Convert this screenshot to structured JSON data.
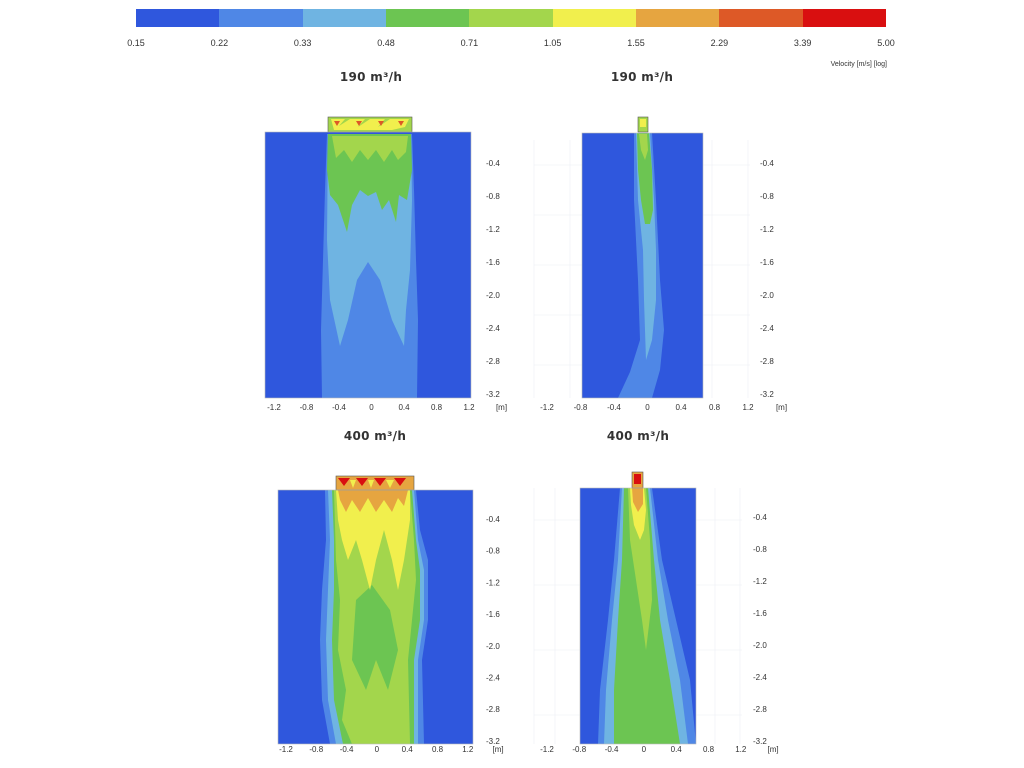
{
  "legend": {
    "ticks": [
      "0.15",
      "0.22",
      "0.33",
      "0.48",
      "0.71",
      "1.05",
      "1.55",
      "2.29",
      "3.39",
      "5.00"
    ],
    "unit_label": "Velocity [m/s] [log]",
    "colors": [
      "#2f57dd",
      "#4f87e6",
      "#6fb4e2",
      "#6cc552",
      "#a3d64c",
      "#f1ef4d",
      "#e6a540",
      "#dd5927",
      "#d90f10"
    ]
  },
  "panels": [
    {
      "title": "190 m³/h",
      "view": "front",
      "x_ticks": [
        "-1.2",
        "-0.8",
        "-0.4",
        "0",
        "0.4",
        "0.8",
        "1.2",
        "[m]"
      ],
      "y_ticks": [
        "-0.4",
        "-0.8",
        "-1.2",
        "-1.6",
        "-2.0",
        "-2.4",
        "-2.8",
        "-3.2"
      ]
    },
    {
      "title": "190 m³/h",
      "view": "side",
      "x_ticks": [
        "-1.2",
        "-0.8",
        "-0.4",
        "0",
        "0.4",
        "0.8",
        "1.2",
        "[m]"
      ],
      "y_ticks": [
        "-0.4",
        "-0.8",
        "-1.2",
        "-1.6",
        "-2.0",
        "-2.4",
        "-2.8",
        "-3.2"
      ]
    },
    {
      "title": "400 m³/h",
      "view": "front",
      "x_ticks": [
        "-1.2",
        "-0.8",
        "-0.4",
        "0",
        "0.4",
        "0.8",
        "1.2",
        "[m]"
      ],
      "y_ticks": [
        "-0.4",
        "-0.8",
        "-1.2",
        "-1.6",
        "-2.0",
        "-2.4",
        "-2.8",
        "-3.2"
      ]
    },
    {
      "title": "400 m³/h",
      "view": "side",
      "x_ticks": [
        "-1.2",
        "-0.8",
        "-0.4",
        "0",
        "0.4",
        "0.8",
        "1.2",
        "[m]"
      ],
      "y_ticks": [
        "-0.4",
        "-0.8",
        "-1.2",
        "-1.6",
        "-2.0",
        "-2.4",
        "-2.8",
        "-3.2"
      ]
    }
  ]
}
